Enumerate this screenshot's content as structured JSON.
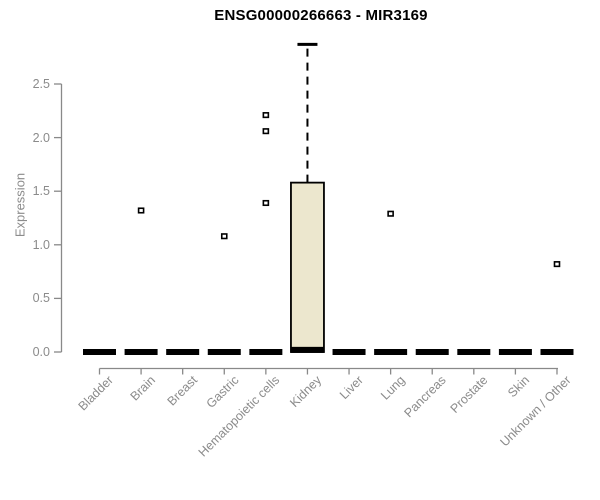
{
  "window": {
    "background": "#ffffff"
  },
  "chart_data": {
    "type": "boxplot",
    "title": "ENSG00000266663 - MIR3169",
    "xlabel": "",
    "ylabel": "Expression",
    "ylim": [
      0,
      2.9
    ],
    "yticks": [
      "0.0",
      "0.5",
      "1.0",
      "1.5",
      "2.0",
      "2.5"
    ],
    "grid": false,
    "legend": "none",
    "categories": [
      "Bladder",
      "Brain",
      "Breast",
      "Gastric",
      "Hematopoietic cells",
      "Kidney",
      "Liver",
      "Lung",
      "Pancreas",
      "Prostate",
      "Skin",
      "Unknown / Other"
    ],
    "series": [
      {
        "category": "Bladder",
        "q1": 0,
        "median": 0,
        "q3": 0,
        "whisker_low": 0,
        "whisker_high": 0,
        "outliers": []
      },
      {
        "category": "Brain",
        "q1": 0,
        "median": 0,
        "q3": 0,
        "whisker_low": 0,
        "whisker_high": 0,
        "outliers": [
          1.32
        ]
      },
      {
        "category": "Breast",
        "q1": 0,
        "median": 0,
        "q3": 0,
        "whisker_low": 0,
        "whisker_high": 0,
        "outliers": []
      },
      {
        "category": "Gastric",
        "q1": 0,
        "median": 0,
        "q3": 0,
        "whisker_low": 0,
        "whisker_high": 0,
        "outliers": [
          1.08
        ]
      },
      {
        "category": "Hematopoietic cells",
        "q1": 0,
        "median": 0,
        "q3": 0,
        "whisker_low": 0,
        "whisker_high": 0,
        "outliers": [
          1.39,
          2.06,
          2.21
        ]
      },
      {
        "category": "Kidney",
        "q1": 0,
        "median": 0.02,
        "q3": 1.58,
        "whisker_low": 0,
        "whisker_high": 2.87,
        "outliers": []
      },
      {
        "category": "Liver",
        "q1": 0,
        "median": 0,
        "q3": 0,
        "whisker_low": 0,
        "whisker_high": 0,
        "outliers": []
      },
      {
        "category": "Lung",
        "q1": 0,
        "median": 0,
        "q3": 0,
        "whisker_low": 0,
        "whisker_high": 0,
        "outliers": [
          1.29
        ]
      },
      {
        "category": "Pancreas",
        "q1": 0,
        "median": 0,
        "q3": 0,
        "whisker_low": 0,
        "whisker_high": 0,
        "outliers": []
      },
      {
        "category": "Prostate",
        "q1": 0,
        "median": 0,
        "q3": 0,
        "whisker_low": 0,
        "whisker_high": 0,
        "outliers": []
      },
      {
        "category": "Skin",
        "q1": 0,
        "median": 0,
        "q3": 0,
        "whisker_low": 0,
        "whisker_high": 0,
        "outliers": []
      },
      {
        "category": "Unknown / Other",
        "q1": 0,
        "median": 0,
        "q3": 0,
        "whisker_low": 0,
        "whisker_high": 0,
        "outliers": [
          0.82
        ]
      }
    ],
    "colors": {
      "box_fill": "#ece7ce",
      "box_border": "#000000",
      "median": "#000000",
      "whisker": "#000000",
      "outlier_border": "#000000",
      "outlier_fill": "#ffffff",
      "axis": "#898989",
      "tick_label": "#8b8b8b",
      "title": "#000000"
    }
  }
}
